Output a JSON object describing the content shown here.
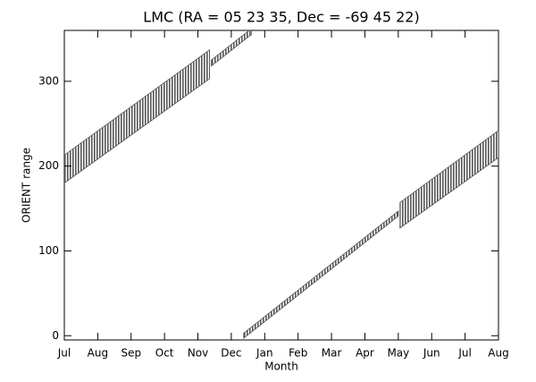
{
  "chart_data": {
    "type": "band",
    "title": "LMC (RA = 05 23 35, Dec = -69 45 22)",
    "x_label": "Month",
    "y_label": "ORIENT range",
    "categories": [
      "Jul",
      "Aug",
      "Sep",
      "Oct",
      "Nov",
      "Dec",
      "Jan",
      "Feb",
      "Mar",
      "Apr",
      "May",
      "Jun",
      "Jul",
      "Aug"
    ],
    "xlim": [
      0,
      13
    ],
    "ylim": [
      -5,
      360
    ],
    "yticks": [
      0,
      100,
      200,
      300
    ],
    "color": "#555555",
    "bands": [
      {
        "x": [
          0,
          4.35
        ],
        "low": [
          180,
          303
        ],
        "high": [
          213,
          337
        ]
      },
      {
        "x": [
          4.4,
          5.6
        ],
        "low": [
          318,
          355
        ],
        "high": [
          325,
          362
        ]
      },
      {
        "x": [
          5.37,
          10
        ],
        "low": [
          -3,
          141
        ],
        "high": [
          3,
          147
        ]
      },
      {
        "x": [
          10.05,
          13
        ],
        "low": [
          127,
          210
        ],
        "high": [
          157,
          242
        ]
      }
    ]
  }
}
